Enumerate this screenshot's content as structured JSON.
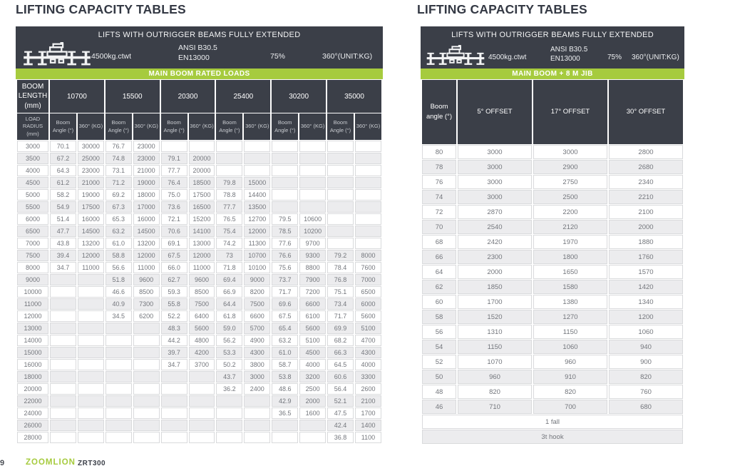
{
  "colors": {
    "dark": "#3b3f48",
    "green": "#a6cb3e"
  },
  "footer": {
    "page_number": "9",
    "brand": "ZOOMLION",
    "model": "ZRT300"
  },
  "left": {
    "title": "LIFTING CAPACITY TABLES",
    "banner": "LIFTS WITH OUTRIGGER BEAMS FULLY EXTENDED",
    "counterweight": "4500kg.ctwt",
    "standard1": "ANSI B30.5",
    "standard2": "EN13000",
    "duty": "75%",
    "slew": "360°(UNIT:KG)",
    "section": "MAIN BOOM RATED LOADS",
    "boom_length_label": "BOOM LENGTH (mm)",
    "load_radius_label": "LOAD RADIUS (mm)",
    "boom_lengths": [
      "10700",
      "15500",
      "20300",
      "25400",
      "30200",
      "35000"
    ],
    "angle_header": "Boom Angle (°)",
    "load_header": "360° (KG)",
    "rows": [
      [
        "3000",
        "70.1",
        "30000",
        "76.7",
        "23000",
        "",
        "",
        "",
        "",
        "",
        "",
        "",
        ""
      ],
      [
        "3500",
        "67.2",
        "25000",
        "74.8",
        "23000",
        "79.1",
        "20000",
        "",
        "",
        "",
        "",
        "",
        ""
      ],
      [
        "4000",
        "64.3",
        "23000",
        "73.1",
        "21000",
        "77.7",
        "20000",
        "",
        "",
        "",
        "",
        "",
        ""
      ],
      [
        "4500",
        "61.2",
        "21000",
        "71.2",
        "19000",
        "76.4",
        "18500",
        "79.8",
        "15000",
        "",
        "",
        "",
        ""
      ],
      [
        "5000",
        "58.2",
        "19000",
        "69.2",
        "18000",
        "75.0",
        "17500",
        "78.8",
        "14400",
        "",
        "",
        "",
        ""
      ],
      [
        "5500",
        "54.9",
        "17500",
        "67.3",
        "17000",
        "73.6",
        "16500",
        "77.7",
        "13500",
        "",
        "",
        "",
        ""
      ],
      [
        "6000",
        "51.4",
        "16000",
        "65.3",
        "16000",
        "72.1",
        "15200",
        "76.5",
        "12700",
        "79.5",
        "10600",
        "",
        ""
      ],
      [
        "6500",
        "47.7",
        "14500",
        "63.2",
        "14500",
        "70.6",
        "14100",
        "75.4",
        "12000",
        "78.5",
        "10200",
        "",
        ""
      ],
      [
        "7000",
        "43.8",
        "13200",
        "61.0",
        "13200",
        "69.1",
        "13000",
        "74.2",
        "11300",
        "77.6",
        "9700",
        "",
        ""
      ],
      [
        "7500",
        "39.4",
        "12000",
        "58.8",
        "12000",
        "67.5",
        "12000",
        "73",
        "10700",
        "76.6",
        "9300",
        "79.2",
        "8000"
      ],
      [
        "8000",
        "34.7",
        "11000",
        "56.6",
        "11000",
        "66.0",
        "11000",
        "71.8",
        "10100",
        "75.6",
        "8800",
        "78.4",
        "7600"
      ],
      [
        "9000",
        "",
        "",
        "51.8",
        "9600",
        "62.7",
        "9600",
        "69.4",
        "9000",
        "73.7",
        "7900",
        "76.8",
        "7000"
      ],
      [
        "10000",
        "",
        "",
        "46.6",
        "8500",
        "59.3",
        "8500",
        "66.9",
        "8200",
        "71.7",
        "7200",
        "75.1",
        "6500"
      ],
      [
        "11000",
        "",
        "",
        "40.9",
        "7300",
        "55.8",
        "7500",
        "64.4",
        "7500",
        "69.6",
        "6600",
        "73.4",
        "6000"
      ],
      [
        "12000",
        "",
        "",
        "34.5",
        "6200",
        "52.2",
        "6400",
        "61.8",
        "6600",
        "67.5",
        "6100",
        "71.7",
        "5600"
      ],
      [
        "13000",
        "",
        "",
        "",
        "",
        "48.3",
        "5600",
        "59.0",
        "5700",
        "65.4",
        "5600",
        "69.9",
        "5100"
      ],
      [
        "14000",
        "",
        "",
        "",
        "",
        "44.2",
        "4800",
        "56.2",
        "4900",
        "63.2",
        "5100",
        "68.2",
        "4700"
      ],
      [
        "15000",
        "",
        "",
        "",
        "",
        "39.7",
        "4200",
        "53.3",
        "4300",
        "61.0",
        "4500",
        "66.3",
        "4300"
      ],
      [
        "16000",
        "",
        "",
        "",
        "",
        "34.7",
        "3700",
        "50.2",
        "3800",
        "58.7",
        "4000",
        "64.5",
        "4000"
      ],
      [
        "18000",
        "",
        "",
        "",
        "",
        "",
        "",
        "43.7",
        "3000",
        "53.8",
        "3200",
        "60.6",
        "3300"
      ],
      [
        "20000",
        "",
        "",
        "",
        "",
        "",
        "",
        "36.2",
        "2400",
        "48.6",
        "2500",
        "56.4",
        "2600"
      ],
      [
        "22000",
        "",
        "",
        "",
        "",
        "",
        "",
        "",
        "",
        "42.9",
        "2000",
        "52.1",
        "2100"
      ],
      [
        "24000",
        "",
        "",
        "",
        "",
        "",
        "",
        "",
        "",
        "36.5",
        "1600",
        "47.5",
        "1700"
      ],
      [
        "26000",
        "",
        "",
        "",
        "",
        "",
        "",
        "",
        "",
        "",
        "",
        "42.4",
        "1400"
      ],
      [
        "28000",
        "",
        "",
        "",
        "",
        "",
        "",
        "",
        "",
        "",
        "",
        "36.8",
        "1100"
      ]
    ]
  },
  "right": {
    "title": "LIFTING CAPACITY TABLES",
    "banner": "LIFTS WITH OUTRIGGER BEAMS FULLY EXTENDED",
    "counterweight": "4500kg.ctwt",
    "standard1": "ANSI B30.5",
    "standard2": "EN13000",
    "duty": "75%",
    "slew": "360°(UNIT:KG)",
    "section": "MAIN BOOM + 8 M JIB",
    "angle_label": "Boom angle (°)",
    "offset_headers": [
      "5° OFFSET",
      "17° OFFSET",
      "30° OFFSET"
    ],
    "rows": [
      [
        "80",
        "3000",
        "3000",
        "2800"
      ],
      [
        "78",
        "3000",
        "2900",
        "2680"
      ],
      [
        "76",
        "3000",
        "2750",
        "2340"
      ],
      [
        "74",
        "3000",
        "2500",
        "2210"
      ],
      [
        "72",
        "2870",
        "2200",
        "2100"
      ],
      [
        "70",
        "2540",
        "2120",
        "2000"
      ],
      [
        "68",
        "2420",
        "1970",
        "1880"
      ],
      [
        "66",
        "2300",
        "1800",
        "1760"
      ],
      [
        "64",
        "2000",
        "1650",
        "1570"
      ],
      [
        "62",
        "1850",
        "1580",
        "1420"
      ],
      [
        "60",
        "1700",
        "1380",
        "1340"
      ],
      [
        "58",
        "1520",
        "1270",
        "1200"
      ],
      [
        "56",
        "1310",
        "1150",
        "1060"
      ],
      [
        "54",
        "1150",
        "1060",
        "940"
      ],
      [
        "52",
        "1070",
        "960",
        "900"
      ],
      [
        "50",
        "960",
        "910",
        "820"
      ],
      [
        "48",
        "820",
        "820",
        "760"
      ],
      [
        "46",
        "710",
        "700",
        "680"
      ]
    ],
    "notes": [
      "1 fall",
      "3t hook"
    ]
  }
}
